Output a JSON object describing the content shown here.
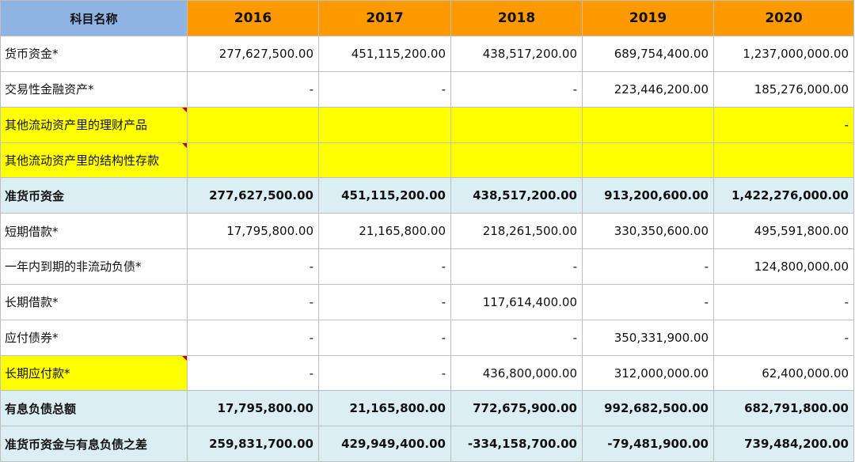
{
  "header": {
    "label": "科目名称",
    "years": [
      "2016",
      "2017",
      "2018",
      "2019",
      "2020"
    ]
  },
  "rows": [
    {
      "label": "货币资金*",
      "values": [
        "277,627,500.00",
        "451,115,200.00",
        "438,517,200.00",
        "689,754,400.00",
        "1,237,000,000.00"
      ]
    },
    {
      "label": "交易性金融资产*",
      "values": [
        "-",
        "-",
        "-",
        "223,446,200.00",
        "185,276,000.00"
      ]
    },
    {
      "label": "其他流动资产里的理财产品",
      "values": [
        "",
        "",
        "",
        "",
        "-"
      ]
    },
    {
      "label": "其他流动资产里的结构性存款",
      "values": [
        "",
        "",
        "",
        "",
        ""
      ]
    },
    {
      "label": "准货币资金",
      "values": [
        "277,627,500.00",
        "451,115,200.00",
        "438,517,200.00",
        "913,200,600.00",
        "1,422,276,000.00"
      ]
    },
    {
      "label": "短期借款*",
      "values": [
        "17,795,800.00",
        "21,165,800.00",
        "218,261,500.00",
        "330,350,600.00",
        "495,591,800.00"
      ]
    },
    {
      "label": "一年内到期的非流动负债*",
      "values": [
        "-",
        "-",
        "-",
        "-",
        "124,800,000.00"
      ]
    },
    {
      "label": "长期借款*",
      "values": [
        "-",
        "-",
        "117,614,400.00",
        "-",
        "-"
      ]
    },
    {
      "label": "应付债券*",
      "values": [
        "-",
        "-",
        "-",
        "350,331,900.00",
        "-"
      ]
    },
    {
      "label": "长期应付款*",
      "values": [
        "-",
        "-",
        "436,800,000.00",
        "312,000,000.00",
        "62,400,000.00"
      ]
    },
    {
      "label": "有息负债总额",
      "values": [
        "17,795,800.00",
        "21,165,800.00",
        "772,675,900.00",
        "992,682,500.00",
        "682,791,800.00"
      ]
    },
    {
      "label": "准货币资金与有息负债之差",
      "values": [
        "259,831,700.00",
        "429,949,400.00",
        "-334,158,700.00",
        "-79,481,900.00",
        "739,484,200.00"
      ]
    }
  ],
  "colors": {
    "header_label_bg": "#8db4e2",
    "header_year_bg": "#ff9900",
    "highlight_bg": "#ffff00",
    "total_bg": "#daeef3",
    "comment_marker": "#c00000"
  }
}
